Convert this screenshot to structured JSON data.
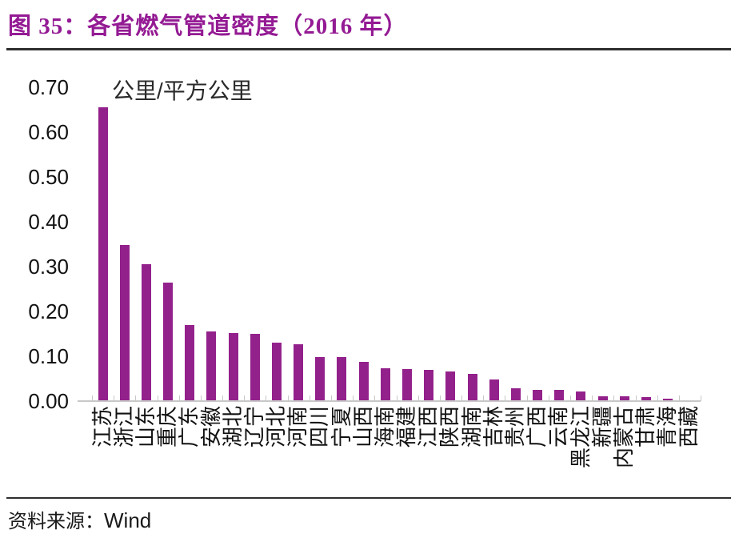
{
  "title": "图 35：各省燃气管道密度（2016 年）",
  "source": {
    "prefix": "资料来源：",
    "name": "Wind"
  },
  "colors": {
    "bar": "#93218B",
    "title_text": "#941B94",
    "rule": "#2e2e2e",
    "axis": "#C8C8C8",
    "text": "#111111"
  },
  "chart_data": {
    "type": "bar",
    "title": "图 35：各省燃气管道密度（2016 年）",
    "unit_label": "公里/平方公里",
    "xlabel": "",
    "ylabel": "公里/平方公里",
    "ylim": [
      0,
      0.7
    ],
    "y_ticks": [
      "0.00",
      "0.10",
      "0.20",
      "0.30",
      "0.40",
      "0.50",
      "0.60",
      "0.70"
    ],
    "grid": false,
    "legend_position": "none",
    "bar_color": "#93218B",
    "categories": [
      "江苏",
      "浙江",
      "山东",
      "重庆",
      "广东",
      "安徽",
      "湖北",
      "辽宁",
      "河北",
      "河南",
      "四川",
      "宁夏",
      "山西",
      "海南",
      "福建",
      "江西",
      "陕西",
      "湖南",
      "吉林",
      "贵州",
      "广西",
      "云南",
      "黑龙江",
      "新疆",
      "内蒙古",
      "甘肃",
      "青海",
      "西藏"
    ],
    "values": [
      0.655,
      0.348,
      0.306,
      0.265,
      0.17,
      0.155,
      0.152,
      0.15,
      0.131,
      0.127,
      0.099,
      0.098,
      0.088,
      0.073,
      0.071,
      0.07,
      0.067,
      0.061,
      0.049,
      0.028,
      0.025,
      0.025,
      0.021,
      0.01,
      0.01,
      0.009,
      0.005,
      0.002
    ]
  }
}
